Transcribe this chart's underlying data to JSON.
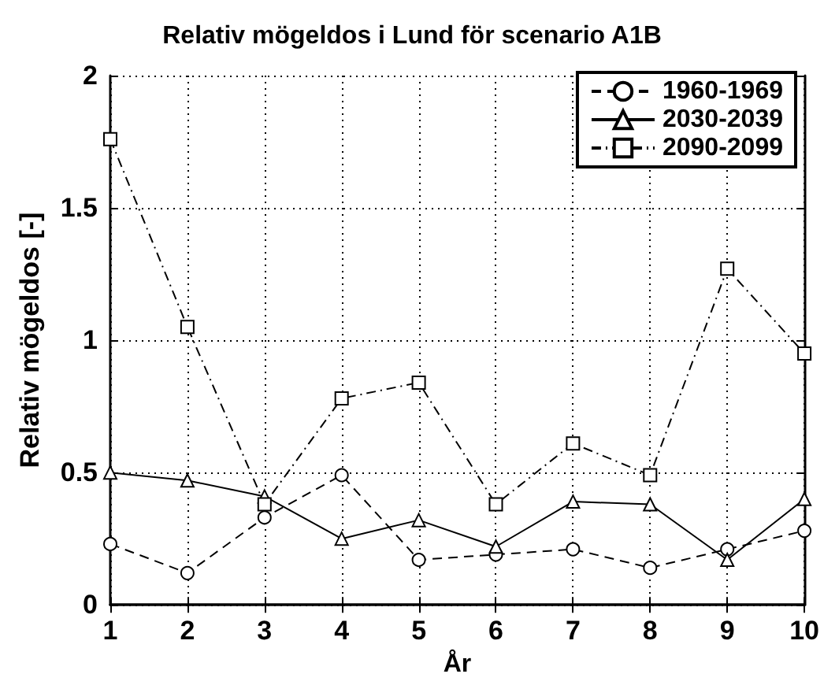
{
  "chart_data": {
    "type": "line",
    "title": "Relativ mögeldos i Lund för scenario A1B",
    "xlabel": "År",
    "ylabel": "Relativ mögeldos [-]",
    "x": [
      1,
      2,
      3,
      4,
      5,
      6,
      7,
      8,
      9,
      10
    ],
    "xlim": [
      1,
      10
    ],
    "xticks": [
      1,
      2,
      3,
      4,
      5,
      6,
      7,
      8,
      9,
      10
    ],
    "ylim": [
      0,
      2
    ],
    "yticks": [
      0,
      0.5,
      1,
      1.5,
      2
    ],
    "grid": true,
    "legend": "top right",
    "series": [
      {
        "name": "1960-1969",
        "color": "#000000",
        "marker": "circle",
        "line_style": "dashed",
        "values": [
          0.23,
          0.12,
          0.33,
          0.49,
          0.17,
          0.19,
          0.21,
          0.14,
          0.21,
          0.28
        ]
      },
      {
        "name": "2030-2039",
        "color": "#000000",
        "marker": "triangle",
        "line_style": "solid",
        "values": [
          0.5,
          0.47,
          0.41,
          0.25,
          0.32,
          0.22,
          0.39,
          0.38,
          0.17,
          0.4
        ]
      },
      {
        "name": "2090-2099",
        "color": "#000000",
        "marker": "square",
        "line_style": "dashdot",
        "values": [
          1.76,
          1.05,
          0.38,
          0.78,
          0.84,
          0.38,
          0.61,
          0.49,
          1.27,
          0.95
        ]
      }
    ]
  }
}
